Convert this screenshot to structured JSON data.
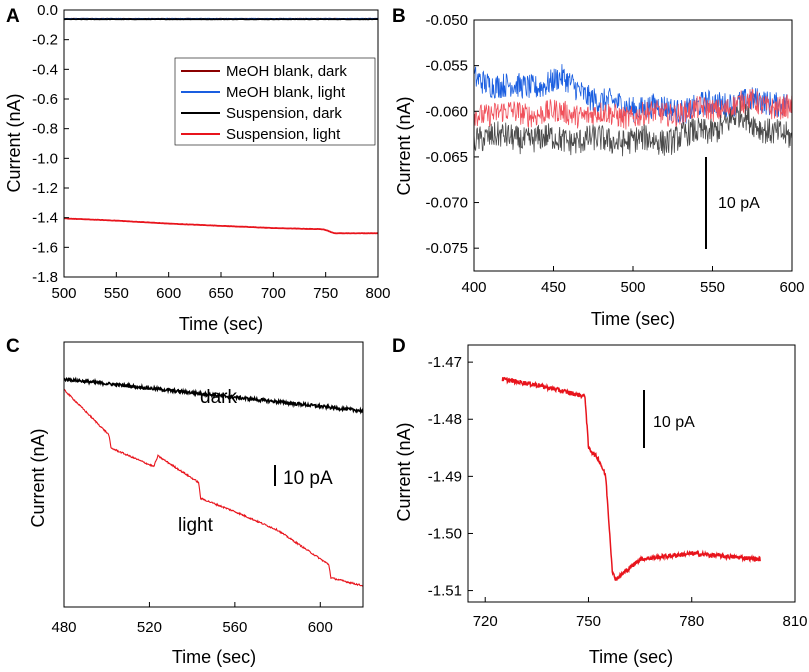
{
  "colors": {
    "dark_red": "#8b0000",
    "blue": "#1a5ee0",
    "black": "#000000",
    "red": "#e8141c",
    "gray": "#4a4a4a",
    "light_red": "#f0505a"
  },
  "chart_data": [
    {
      "panel": "A",
      "type": "line",
      "xlabel": "Time (sec)",
      "ylabel": "Current (nA)",
      "xlim": [
        500,
        800
      ],
      "ylim": [
        -1.8,
        0.0
      ],
      "xticks": [
        "500",
        "550",
        "600",
        "650",
        "700",
        "750",
        "800"
      ],
      "yticks": [
        "0.0",
        "-0.2",
        "-0.4",
        "-0.6",
        "-0.8",
        "-1.0",
        "-1.2",
        "-1.4",
        "-1.6",
        "-1.8"
      ],
      "legend_position": "top-right",
      "series": [
        {
          "name": "MeOH blank, dark",
          "color": "#8b0000",
          "x": [
            500,
            800
          ],
          "y": [
            -0.06,
            -0.06
          ]
        },
        {
          "name": "MeOH blank, light",
          "color": "#1a5ee0",
          "x": [
            500,
            800
          ],
          "y": [
            -0.06,
            -0.06
          ]
        },
        {
          "name": "Suspension, dark",
          "color": "#000000",
          "x": [
            500,
            800
          ],
          "y": [
            -0.062,
            -0.062
          ]
        },
        {
          "name": "Suspension, light",
          "color": "#e8141c",
          "x": [
            500,
            550,
            600,
            650,
            700,
            748,
            752,
            758,
            800
          ],
          "y": [
            -1.405,
            -1.42,
            -1.44,
            -1.455,
            -1.47,
            -1.478,
            -1.488,
            -1.505,
            -1.505
          ]
        }
      ]
    },
    {
      "panel": "B",
      "type": "line",
      "xlabel": "Time (sec)",
      "ylabel": "Current (nA)",
      "xlim": [
        400,
        600
      ],
      "ylim": [
        -0.0775,
        -0.05
      ],
      "xticks": [
        "400",
        "450",
        "500",
        "550",
        "600"
      ],
      "yticks": [
        "-0.050",
        "-0.055",
        "-0.060",
        "-0.065",
        "-0.070",
        "-0.075"
      ],
      "scale_bar": "10 pA",
      "series": [
        {
          "name": "MeOH blank, light",
          "color": "#1a5ee0",
          "x": [
            400,
            430,
            455,
            480,
            500,
            530,
            560,
            600
          ],
          "y": [
            -0.0565,
            -0.0575,
            -0.0565,
            -0.059,
            -0.0595,
            -0.0598,
            -0.059,
            -0.059
          ]
        },
        {
          "name": "Suspension, light",
          "color": "#f0505a",
          "x": [
            400,
            450,
            500,
            550,
            575,
            600
          ],
          "y": [
            -0.0602,
            -0.0602,
            -0.0605,
            -0.0598,
            -0.059,
            -0.0598
          ]
        },
        {
          "name": "Suspension, dark",
          "color": "#4a4a4a",
          "x": [
            400,
            440,
            480,
            520,
            550,
            568,
            585,
            600
          ],
          "y": [
            -0.0628,
            -0.063,
            -0.0632,
            -0.0632,
            -0.062,
            -0.0605,
            -0.062,
            -0.0632
          ]
        }
      ]
    },
    {
      "panel": "C",
      "type": "line",
      "xlabel": "Time (sec)",
      "ylabel": "Current (nA)",
      "xlim": [
        480,
        620
      ],
      "ylim": [
        0,
        1
      ],
      "xticks": [
        "480",
        "520",
        "560",
        "600"
      ],
      "scale_bar": "10 pA",
      "annotations": [
        "dark",
        "light"
      ],
      "series": [
        {
          "name": "dark",
          "color": "#000000",
          "x": [
            480,
            620
          ],
          "y": [
            0.86,
            0.74
          ]
        },
        {
          "name": "light",
          "color": "#e8141c",
          "x": [
            480,
            501,
            502,
            522,
            524,
            543,
            544,
            560,
            580,
            604,
            605,
            620
          ],
          "y": [
            0.82,
            0.65,
            0.6,
            0.53,
            0.57,
            0.47,
            0.41,
            0.36,
            0.29,
            0.16,
            0.11,
            0.08
          ]
        }
      ]
    },
    {
      "panel": "D",
      "type": "line",
      "xlabel": "Time (sec)",
      "ylabel": "Current (nA)",
      "xlim": [
        715,
        810
      ],
      "ylim": [
        -1.512,
        -1.467
      ],
      "xticks": [
        "720",
        "750",
        "780",
        "810"
      ],
      "yticks": [
        "-1.47",
        "-1.48",
        "-1.49",
        "-1.50",
        "-1.51"
      ],
      "scale_bar": "10 pA",
      "series": [
        {
          "name": "Suspension, light",
          "color": "#e8141c",
          "x": [
            725,
            735,
            749,
            750,
            753,
            755,
            757,
            758,
            765,
            780,
            800
          ],
          "y": [
            -1.473,
            -1.474,
            -1.476,
            -1.485,
            -1.487,
            -1.49,
            -1.507,
            -1.508,
            -1.5045,
            -1.5035,
            -1.5045
          ]
        }
      ]
    }
  ]
}
